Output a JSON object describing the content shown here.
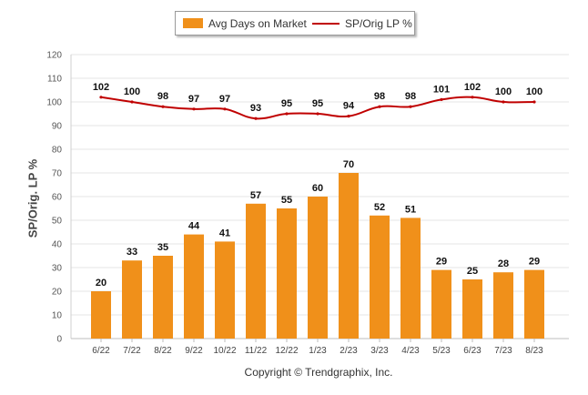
{
  "chart_data": {
    "type": "bar",
    "categories": [
      "6/22",
      "7/22",
      "8/22",
      "9/22",
      "10/22",
      "11/22",
      "12/22",
      "1/23",
      "2/23",
      "3/23",
      "4/23",
      "5/23",
      "6/23",
      "7/23",
      "8/23"
    ],
    "series": [
      {
        "name": "Avg Days on Market",
        "type": "bar",
        "color": "#F0901A",
        "values": [
          20,
          33,
          35,
          44,
          41,
          57,
          55,
          60,
          70,
          52,
          51,
          29,
          25,
          28,
          29
        ]
      },
      {
        "name": "SP/Orig LP %",
        "type": "line",
        "color": "#C00000",
        "values": [
          102,
          100,
          98,
          97,
          97,
          93,
          95,
          95,
          94,
          98,
          98,
          101,
          102,
          100,
          100
        ]
      }
    ],
    "ylabel": "SP/Orig. LP %",
    "ylim": [
      0,
      120
    ],
    "yticks": [
      0,
      10,
      20,
      30,
      40,
      50,
      60,
      70,
      80,
      90,
      100,
      110,
      120
    ],
    "grid": true,
    "legend_position": "top-center"
  },
  "footer": {
    "copyright": "Copyright © Trendgraphix, Inc."
  }
}
